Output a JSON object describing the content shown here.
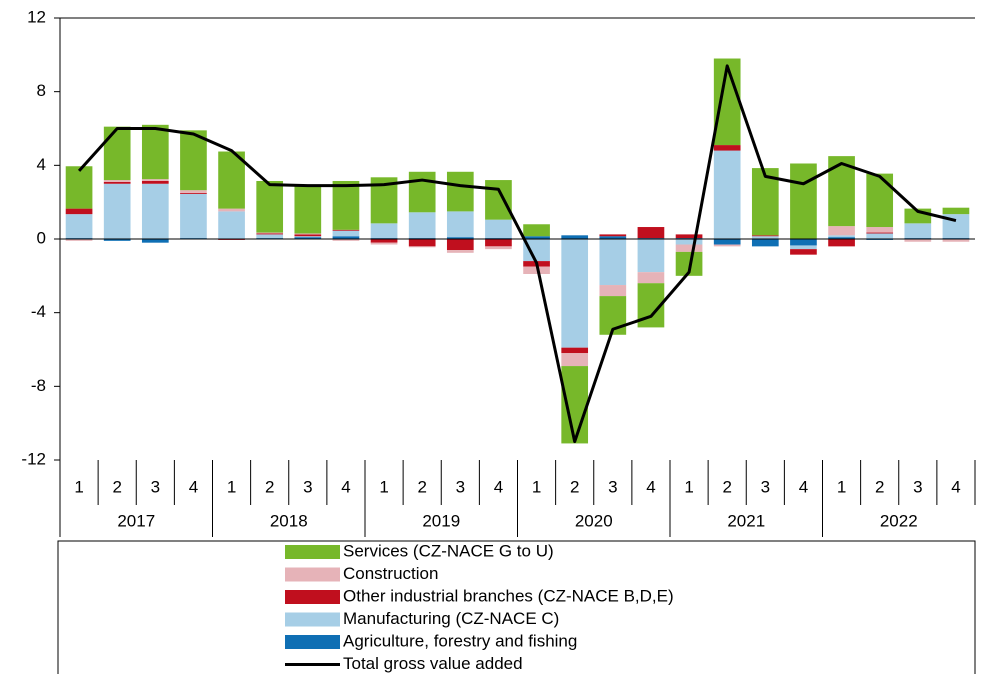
{
  "chart_data": {
    "type": "bar",
    "categories": [
      "1",
      "2",
      "3",
      "4",
      "1",
      "2",
      "3",
      "4",
      "1",
      "2",
      "3",
      "4",
      "1",
      "2",
      "3",
      "4",
      "1",
      "2",
      "3",
      "4",
      "1",
      "2",
      "3",
      "4"
    ],
    "years": [
      "2017",
      "2018",
      "2019",
      "2020",
      "2021",
      "2022"
    ],
    "ylim": [
      -12,
      12
    ],
    "yticks": [
      -12,
      -8,
      -4,
      0,
      4,
      8,
      12
    ],
    "series": [
      {
        "name": "Services (CZ-NACE G to U)",
        "color": "#77b82a",
        "values": [
          2.3,
          2.9,
          2.95,
          3.25,
          3.1,
          2.8,
          2.65,
          2.65,
          2.5,
          2.2,
          2.15,
          2.15,
          0.65,
          -4.2,
          -2.1,
          -2.4,
          -1.3,
          4.7,
          3.65,
          4.1,
          3.8,
          2.9,
          0.8,
          0.35
        ]
      },
      {
        "name": "Construction",
        "color": "#e6b3b8",
        "values": [
          -0.1,
          0.1,
          0.1,
          0.15,
          0.15,
          0.05,
          0.05,
          -0.1,
          -0.1,
          -0.05,
          -0.15,
          -0.15,
          -0.4,
          -0.7,
          -0.6,
          -0.6,
          -0.4,
          -0.1,
          0,
          0,
          0.5,
          0.3,
          -0.15,
          -0.15
        ]
      },
      {
        "name": "Other industrial branches (CZ-NACE B,D,E)",
        "color": "#c00f1e",
        "values": [
          0.3,
          0.1,
          0.15,
          0.05,
          -0.05,
          0.05,
          0.1,
          0.05,
          -0.2,
          -0.4,
          -0.6,
          -0.4,
          -0.3,
          -0.3,
          0.1,
          0.6,
          0.2,
          0.3,
          0.05,
          -0.3,
          -0.4,
          0.05,
          0,
          0
        ]
      },
      {
        "name": "Manufacturing (CZ-NACE C)",
        "color": "#a6cee6",
        "values": [
          1.3,
          3.0,
          3.0,
          2.4,
          1.5,
          0.2,
          0.05,
          0.3,
          0.8,
          1.4,
          1.4,
          1.0,
          -1.2,
          -5.9,
          -2.5,
          -1.8,
          -0.3,
          4.8,
          0.15,
          -0.2,
          0.1,
          0.3,
          0.8,
          1.3
        ]
      },
      {
        "name": "Agriculture, forestry and fishing",
        "color": "#0f6fb4",
        "values": [
          0.05,
          -0.1,
          -0.2,
          0.05,
          0,
          0.05,
          0.1,
          0.15,
          0.05,
          0.05,
          0.1,
          0.05,
          0.15,
          0.2,
          0.15,
          0.05,
          0.05,
          -0.3,
          -0.4,
          -0.35,
          0.1,
          -0.05,
          0.05,
          0.05
        ]
      },
      {
        "name": "Total gross value added",
        "color": "#000000",
        "type": "line",
        "values": [
          3.7,
          6.0,
          6.0,
          5.7,
          4.8,
          2.95,
          2.9,
          2.9,
          2.95,
          3.2,
          2.9,
          2.7,
          -1.3,
          -11.0,
          -4.9,
          -4.2,
          -1.8,
          9.4,
          3.4,
          3.0,
          4.1,
          3.4,
          1.5,
          1.0
        ]
      }
    ]
  }
}
